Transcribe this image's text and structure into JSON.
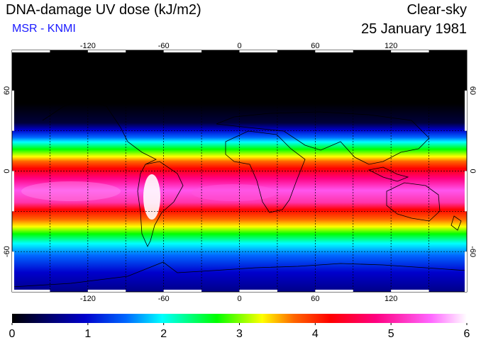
{
  "header": {
    "title": "DNA-damage UV dose (kJ/m2)",
    "subtitle": "MSR - KNMI",
    "condition": "Clear-sky",
    "date": "25 January 1981"
  },
  "map": {
    "projection": "equirectangular",
    "lon_range": [
      -180,
      180
    ],
    "lat_range": [
      -90,
      90
    ],
    "lon_tick_labels": [
      "-120",
      "-60",
      "0",
      "60",
      "120"
    ],
    "lon_tick_values": [
      -120,
      -60,
      0,
      60,
      120
    ],
    "lat_tick_labels": [
      "60",
      "0",
      "-60"
    ],
    "lat_tick_values": [
      60,
      0,
      -60
    ],
    "grid": true,
    "grid_spacing_deg": 30,
    "coastlines": true
  },
  "colorbar": {
    "min": 0,
    "max": 6,
    "tick_labels": [
      "0",
      "1",
      "2",
      "3",
      "4",
      "5",
      "6"
    ],
    "colors": [
      "#000000",
      "#0000cc",
      "#0066ff",
      "#00ffff",
      "#00ff00",
      "#ffff00",
      "#ff6600",
      "#ff0000",
      "#ff0080",
      "#ff66ff",
      "#ffffff"
    ]
  }
}
